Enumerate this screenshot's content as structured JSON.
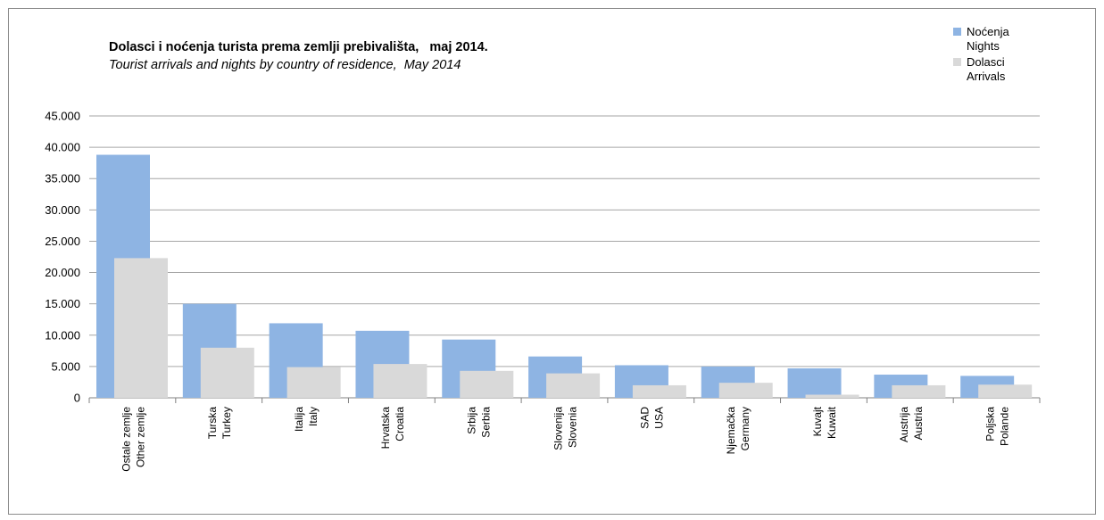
{
  "chart_data": {
    "type": "bar",
    "title": "Dolasci i noćenja turista prema zemlji prebivališta,   maj 2014.",
    "subtitle": "Tourist arrivals and nights by country of residence,  May 2014",
    "xlabel": "",
    "ylabel": "",
    "ylim": [
      0,
      45000
    ],
    "yticks": [
      0,
      5000,
      10000,
      15000,
      20000,
      25000,
      30000,
      35000,
      40000,
      45000
    ],
    "ytick_labels": [
      "0",
      "5.000",
      "10.000",
      "15.000",
      "20.000",
      "25.000",
      "30.000",
      "35.000",
      "40.000",
      "45.000"
    ],
    "grid": true,
    "legend_position": "top-right",
    "categories": [
      {
        "local": "Ostale zemlje",
        "english": "Other zemlje"
      },
      {
        "local": "Turska",
        "english": "Turkey"
      },
      {
        "local": "Italija",
        "english": "Italy"
      },
      {
        "local": "Hrvatska",
        "english": "Croatia"
      },
      {
        "local": "Srbija",
        "english": "Serbia"
      },
      {
        "local": "Slovenija",
        "english": "Slovenia"
      },
      {
        "local": "SAD",
        "english": "USA"
      },
      {
        "local": "Njemačka",
        "english": "Germany"
      },
      {
        "local": "Kuvajt",
        "english": "Kuwait"
      },
      {
        "local": "Austrija",
        "english": "Austria"
      },
      {
        "local": "Poljska",
        "english": "Polande"
      }
    ],
    "series": [
      {
        "name_local": "Noćenja",
        "name_english": "Nights",
        "color": "#8eb4e3",
        "values": [
          38800,
          15000,
          11900,
          10700,
          9300,
          6600,
          5200,
          5000,
          4700,
          3700,
          3500
        ]
      },
      {
        "name_local": "Dolasci",
        "name_english": "Arrivals",
        "color": "#d9d9d9",
        "values": [
          22300,
          8000,
          4900,
          5400,
          4300,
          3900,
          2000,
          2400,
          500,
          2000,
          2100
        ]
      }
    ],
    "colors": {
      "grid": "#a6a6a6",
      "axis": "#808080"
    }
  }
}
